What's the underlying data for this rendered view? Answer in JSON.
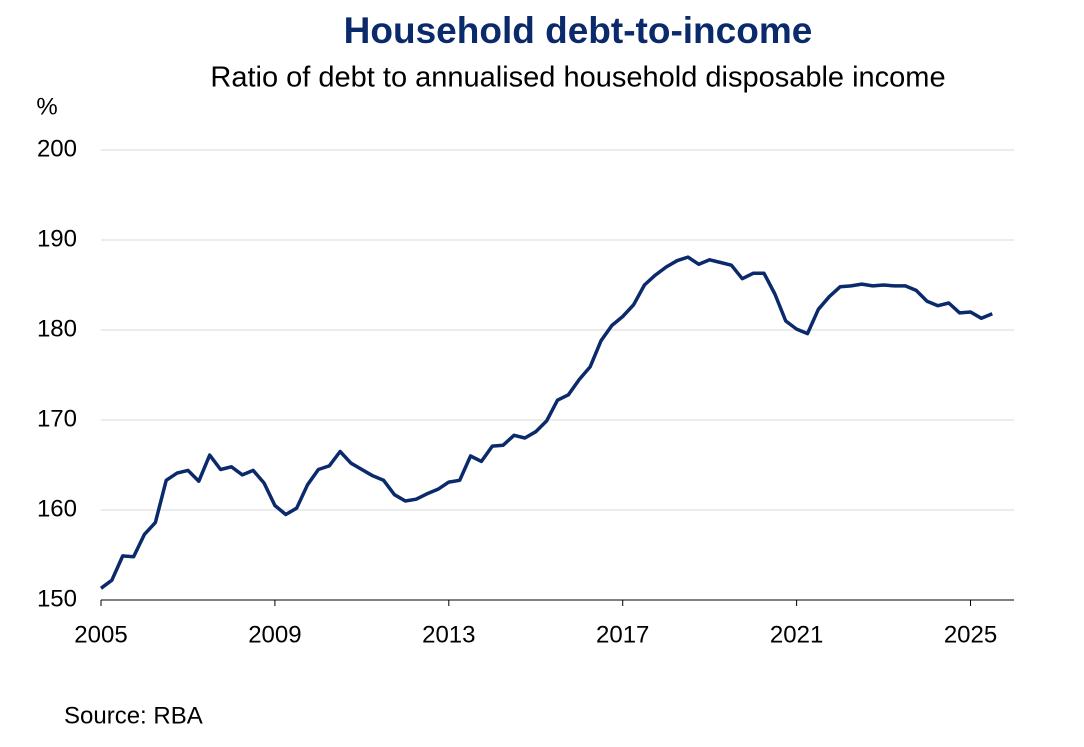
{
  "chart_data": {
    "type": "line",
    "title": "Household debt-to-income",
    "subtitle": "Ratio of debt to annualised household disposable income",
    "y_label": "%",
    "source": "Source: RBA",
    "x": [
      2005,
      2005.25,
      2005.5,
      2005.75,
      2006,
      2006.25,
      2006.5,
      2006.75,
      2007,
      2007.25,
      2007.5,
      2007.75,
      2008,
      2008.25,
      2008.5,
      2008.75,
      2009,
      2009.25,
      2009.5,
      2009.75,
      2010,
      2010.25,
      2010.5,
      2010.75,
      2011,
      2011.25,
      2011.5,
      2011.75,
      2012,
      2012.25,
      2012.5,
      2012.75,
      2013,
      2013.25,
      2013.5,
      2013.75,
      2014,
      2014.25,
      2014.5,
      2014.75,
      2015,
      2015.25,
      2015.5,
      2015.75,
      2016,
      2016.25,
      2016.5,
      2016.75,
      2017,
      2017.25,
      2017.5,
      2017.75,
      2018,
      2018.25,
      2018.5,
      2018.75,
      2019,
      2019.25,
      2019.5,
      2019.75,
      2020,
      2020.25,
      2020.5,
      2020.75,
      2021,
      2021.25,
      2021.5,
      2021.75,
      2022,
      2022.25,
      2022.5,
      2022.75,
      2023,
      2023.25,
      2023.5,
      2023.75,
      2024,
      2024.25,
      2024.5,
      2024.75,
      2025,
      2025.25,
      2025.5
    ],
    "series": [
      {
        "name": "Household debt-to-income",
        "color": "#0b2a6b",
        "values": [
          151.3,
          152.2,
          154.9,
          154.8,
          157.3,
          158.6,
          163.3,
          164.1,
          164.4,
          163.2,
          166.1,
          164.5,
          164.8,
          163.9,
          164.4,
          163.0,
          160.5,
          159.5,
          160.2,
          162.8,
          164.5,
          164.9,
          166.5,
          165.2,
          164.5,
          163.8,
          163.3,
          161.7,
          161.0,
          161.2,
          161.8,
          162.3,
          163.1,
          163.3,
          166.0,
          165.4,
          167.1,
          167.2,
          168.3,
          168.0,
          168.7,
          169.9,
          172.2,
          172.8,
          174.5,
          175.9,
          178.8,
          180.5,
          181.5,
          182.8,
          185.0,
          186.1,
          187.0,
          187.7,
          188.1,
          187.3,
          187.8,
          187.5,
          187.2,
          185.7,
          186.3,
          186.3,
          184.0,
          181.0,
          180.1,
          179.6,
          182.3,
          183.7,
          184.8,
          184.9,
          185.1,
          184.9,
          185.0,
          184.9,
          184.9,
          184.4,
          183.2,
          182.7,
          183.0,
          181.9,
          182.0,
          181.3,
          181.8
        ]
      }
    ],
    "xlim": [
      2005,
      2026
    ],
    "xticks": [
      2005,
      2009,
      2013,
      2017,
      2021,
      2025
    ],
    "ylim": [
      150,
      200
    ],
    "yticks": [
      150,
      160,
      170,
      180,
      190,
      200
    ],
    "grid": true
  }
}
